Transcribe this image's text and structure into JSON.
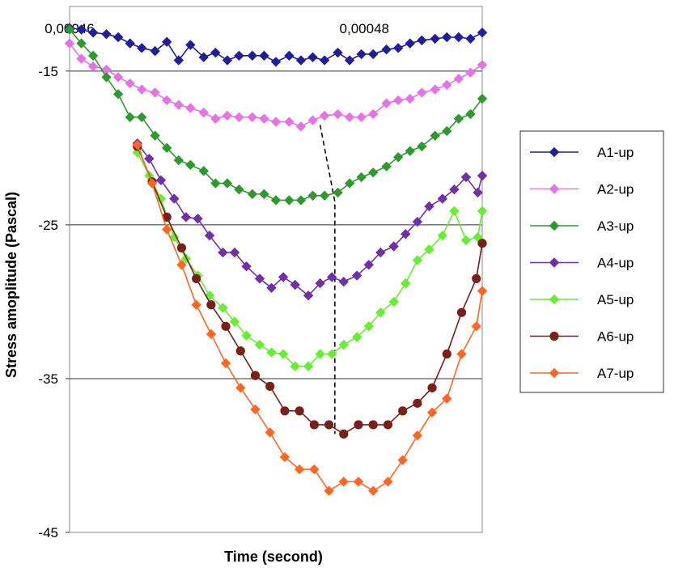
{
  "chart_data": {
    "type": "line",
    "xlabel": "Time (second)",
    "ylabel": "Stress amoplitude (Pascal)",
    "xlim": [
      0.00046,
      0.000488
    ],
    "ylim": [
      -45,
      -10.8
    ],
    "x_ticks": [
      0.00046,
      0.00048
    ],
    "x_tick_labels": [
      "0,00046",
      "0,00048"
    ],
    "y_ticks": [
      -15,
      -25,
      -35,
      -45
    ],
    "y_tick_labels": [
      "-15",
      "-25",
      "-35",
      "-45"
    ],
    "x_axis_position": "top",
    "grid": "horizontal",
    "legend_position": "right",
    "guide_line": {
      "style": "dashed",
      "points": [
        [
          0.000477,
          -18.5
        ],
        [
          0.000478,
          -23.5
        ],
        [
          0.000478,
          -29.6
        ],
        [
          0.000478,
          -34.2
        ],
        [
          0.000478,
          -38.6
        ]
      ]
    },
    "series": [
      {
        "name": "A1-up",
        "color": "#1f1f9e",
        "marker": "diamond",
        "x": [
          0.00046,
          0.0004608,
          0.0004616,
          0.0004625,
          0.0004633,
          0.0004641,
          0.0004649,
          0.0004658,
          0.0004666,
          0.0004674,
          0.0004682,
          0.0004691,
          0.0004699,
          0.0004707,
          0.0004715,
          0.0004724,
          0.0004732,
          0.000474,
          0.0004749,
          0.0004757,
          0.0004765,
          0.0004773,
          0.0004782,
          0.000479,
          0.0004798,
          0.0004806,
          0.0004815,
          0.0004823,
          0.0004831,
          0.0004839,
          0.0004848,
          0.0004856,
          0.0004864,
          0.0004872,
          0.000488
        ],
        "values": [
          -12.2,
          -12.3,
          -12.5,
          -12.6,
          -12.8,
          -13.2,
          -13.5,
          -13.7,
          -13.1,
          -14.3,
          -13.3,
          -14.1,
          -13.8,
          -14.3,
          -14.0,
          -14.0,
          -14.0,
          -14.4,
          -14.0,
          -14.3,
          -14.1,
          -14.3,
          -13.8,
          -14.3,
          -13.9,
          -13.9,
          -13.6,
          -13.5,
          -13.2,
          -13.0,
          -12.9,
          -12.8,
          -12.8,
          -12.9,
          -12.5
        ]
      },
      {
        "name": "A2-up",
        "color": "#e673e6",
        "marker": "diamond",
        "x": [
          0.00046,
          0.0004608,
          0.0004616,
          0.0004625,
          0.0004633,
          0.0004641,
          0.0004649,
          0.0004658,
          0.0004666,
          0.0004674,
          0.0004682,
          0.0004691,
          0.0004699,
          0.0004707,
          0.0004715,
          0.0004724,
          0.0004732,
          0.000474,
          0.0004749,
          0.0004757,
          0.0004765,
          0.0004773,
          0.0004782,
          0.000479,
          0.0004798,
          0.0004806,
          0.0004815,
          0.0004823,
          0.0004831,
          0.0004839,
          0.0004848,
          0.0004856,
          0.0004864,
          0.0004872,
          0.000488
        ],
        "values": [
          -13.2,
          -14.2,
          -14.7,
          -14.9,
          -15.4,
          -15.8,
          -16.2,
          -16.4,
          -16.9,
          -17.2,
          -17.4,
          -17.7,
          -18.1,
          -17.9,
          -18.0,
          -18.0,
          -18.1,
          -18.3,
          -18.3,
          -18.6,
          -18.2,
          -17.9,
          -17.8,
          -18.0,
          -18.0,
          -17.8,
          -17.1,
          -16.9,
          -16.8,
          -16.4,
          -16.2,
          -15.9,
          -15.5,
          -15.1,
          -14.6
        ]
      },
      {
        "name": "A3-up",
        "color": "#2e9a2e",
        "marker": "diamond",
        "x": [
          0.00046,
          0.0004608,
          0.0004616,
          0.0004625,
          0.0004633,
          0.0004641,
          0.0004649,
          0.0004658,
          0.0004666,
          0.0004674,
          0.0004682,
          0.0004691,
          0.0004699,
          0.0004707,
          0.0004715,
          0.0004724,
          0.0004732,
          0.000474,
          0.0004749,
          0.0004757,
          0.0004765,
          0.0004773,
          0.0004782,
          0.000479,
          0.0004798,
          0.0004806,
          0.0004815,
          0.0004823,
          0.0004831,
          0.0004839,
          0.0004848,
          0.0004856,
          0.0004864,
          0.0004872,
          0.000488
        ],
        "values": [
          -12.3,
          -13.2,
          -14.0,
          -15.4,
          -16.5,
          -18.0,
          -18.0,
          -19.2,
          -20.0,
          -20.8,
          -21.1,
          -21.5,
          -22.3,
          -22.3,
          -22.7,
          -23.0,
          -23.0,
          -23.4,
          -23.4,
          -23.4,
          -23.1,
          -23.1,
          -22.9,
          -22.3,
          -21.9,
          -21.6,
          -21.2,
          -20.6,
          -20.2,
          -19.9,
          -19.2,
          -18.9,
          -18.1,
          -17.8,
          -16.8
        ]
      },
      {
        "name": "A4-up",
        "color": "#7030a8",
        "marker": "diamond",
        "x": [
          0.0004646,
          0.0004654,
          0.0004662,
          0.0004671,
          0.0004679,
          0.0004687,
          0.0004695,
          0.0004704,
          0.0004712,
          0.000472,
          0.0004729,
          0.0004737,
          0.0004745,
          0.0004753,
          0.0004762,
          0.000477,
          0.0004778,
          0.0004786,
          0.0004795,
          0.0004803,
          0.0004811,
          0.000482,
          0.0004828,
          0.0004836,
          0.0004844,
          0.0004853,
          0.0004861,
          0.0004869,
          0.0004877,
          0.000488
        ],
        "values": [
          -19.7,
          -20.7,
          -22.1,
          -23.3,
          -24.5,
          -24.6,
          -25.7,
          -26.8,
          -26.8,
          -27.7,
          -28.5,
          -29.1,
          -28.4,
          -28.9,
          -29.6,
          -28.8,
          -28.4,
          -28.7,
          -28.3,
          -27.6,
          -26.8,
          -26.4,
          -25.6,
          -24.8,
          -23.8,
          -23.3,
          -22.7,
          -21.9,
          -22.9,
          -21.8
        ]
      },
      {
        "name": "A5-up",
        "color": "#66ee33",
        "marker": "diamond",
        "x": [
          0.0004646,
          0.0004654,
          0.0004662,
          0.0004671,
          0.0004679,
          0.0004687,
          0.0004695,
          0.0004704,
          0.0004712,
          0.000472,
          0.0004729,
          0.0004737,
          0.0004745,
          0.0004753,
          0.0004762,
          0.000477,
          0.0004778,
          0.0004786,
          0.0004795,
          0.0004803,
          0.0004811,
          0.000482,
          0.0004828,
          0.0004836,
          0.0004844,
          0.0004853,
          0.0004861,
          0.0004869,
          0.0004877,
          0.000488
        ],
        "values": [
          -20.3,
          -21.8,
          -23.3,
          -25.8,
          -27.2,
          -28.3,
          -29.6,
          -30.4,
          -31.3,
          -32.2,
          -32.8,
          -33.3,
          -33.4,
          -34.2,
          -34.2,
          -33.4,
          -33.4,
          -32.8,
          -32.3,
          -31.6,
          -30.7,
          -30.0,
          -28.8,
          -27.3,
          -26.6,
          -25.7,
          -24.1,
          -26.0,
          -25.8,
          -24.1
        ]
      },
      {
        "name": "A6-up",
        "color": "#7a1f1a",
        "marker": "circle",
        "x": [
          0.0004646,
          0.0004656,
          0.0004666,
          0.0004676,
          0.0004686,
          0.0004696,
          0.0004706,
          0.0004716,
          0.0004726,
          0.0004736,
          0.0004746,
          0.0004756,
          0.0004766,
          0.0004776,
          0.0004786,
          0.0004796,
          0.0004806,
          0.0004816,
          0.0004826,
          0.0004836,
          0.0004846,
          0.0004856,
          0.0004866,
          0.0004876,
          0.000488
        ],
        "values": [
          -19.9,
          -22.2,
          -24.5,
          -26.5,
          -28.5,
          -30.2,
          -31.6,
          -33.2,
          -34.8,
          -35.5,
          -37.1,
          -37.1,
          -38.0,
          -38.0,
          -38.6,
          -38.0,
          -38.0,
          -38.0,
          -37.1,
          -36.6,
          -35.6,
          -33.4,
          -30.7,
          -28.5,
          -26.2
        ]
      },
      {
        "name": "A7-up",
        "color": "#ff6622",
        "marker": "diamond",
        "x": [
          0.0004646,
          0.0004656,
          0.0004666,
          0.0004676,
          0.0004686,
          0.0004696,
          0.0004706,
          0.0004716,
          0.0004726,
          0.0004736,
          0.0004746,
          0.0004756,
          0.0004766,
          0.0004776,
          0.0004786,
          0.0004796,
          0.0004806,
          0.0004816,
          0.0004826,
          0.0004836,
          0.0004846,
          0.0004856,
          0.0004866,
          0.0004876,
          0.000488
        ],
        "values": [
          -19.8,
          -22.3,
          -25.3,
          -27.6,
          -30.2,
          -32.1,
          -34.0,
          -35.6,
          -37.0,
          -38.5,
          -40.1,
          -40.9,
          -40.9,
          -42.3,
          -41.7,
          -41.7,
          -42.3,
          -41.7,
          -40.3,
          -38.7,
          -37.2,
          -36.3,
          -33.4,
          -31.6,
          -29.3
        ]
      }
    ]
  }
}
